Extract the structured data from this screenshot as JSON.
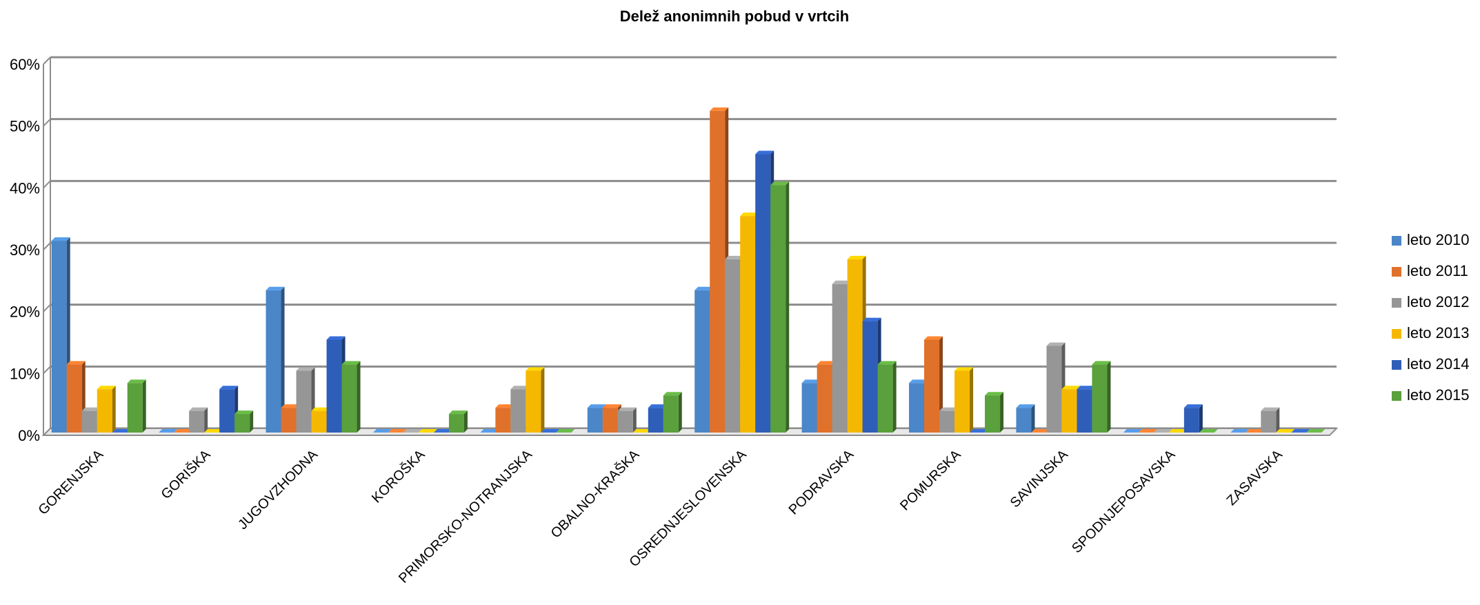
{
  "chart_data": {
    "type": "bar",
    "title": "Delež anonimnih pobud v vrtcih",
    "xlabel": "",
    "ylabel": "",
    "ylim": [
      0,
      60
    ],
    "y_ticks": [
      "0%",
      "10%",
      "20%",
      "30%",
      "40%",
      "50%",
      "60%"
    ],
    "grid": true,
    "legend_position": "right",
    "categories": [
      "GORENJSKA",
      "GORIŠKA",
      "JUGOVZHODNA",
      "KOROŠKA",
      "PRIMORSKO-NOTRANJSKA",
      "OBALNO-KRAŠKA",
      "OSREDNJESLOVENSKA",
      "PODRAVSKA",
      "POMURSKA",
      "SAVINJSKA",
      "SPODNJEPOSAVSKA",
      "ZASAVSKA"
    ],
    "series": [
      {
        "name": "leto 2010",
        "color": "#4a86c8",
        "values": [
          31,
          0,
          23,
          0,
          0,
          4,
          23,
          8,
          8,
          4,
          0,
          0
        ]
      },
      {
        "name": "leto 2011",
        "color": "#e0712b",
        "values": [
          11,
          0,
          4,
          0,
          4,
          4,
          52,
          11,
          15,
          0,
          0,
          0
        ]
      },
      {
        "name": "leto 2012",
        "color": "#969696",
        "values": [
          3.5,
          3.5,
          10,
          0,
          7,
          3.5,
          28,
          24,
          3.5,
          14,
          0,
          3.5
        ]
      },
      {
        "name": "leto 2013",
        "color": "#f5b800",
        "values": [
          7,
          0,
          3.5,
          0,
          10,
          0,
          35,
          28,
          10,
          7,
          0,
          0
        ]
      },
      {
        "name": "leto 2014",
        "color": "#2f5eb8",
        "values": [
          0,
          7,
          15,
          0,
          0,
          4,
          45,
          18,
          0,
          7,
          4,
          0
        ]
      },
      {
        "name": "leto 2015",
        "color": "#5aa03c",
        "values": [
          8,
          3,
          11,
          3,
          0,
          6,
          40,
          11,
          6,
          11,
          0,
          0
        ]
      }
    ]
  }
}
